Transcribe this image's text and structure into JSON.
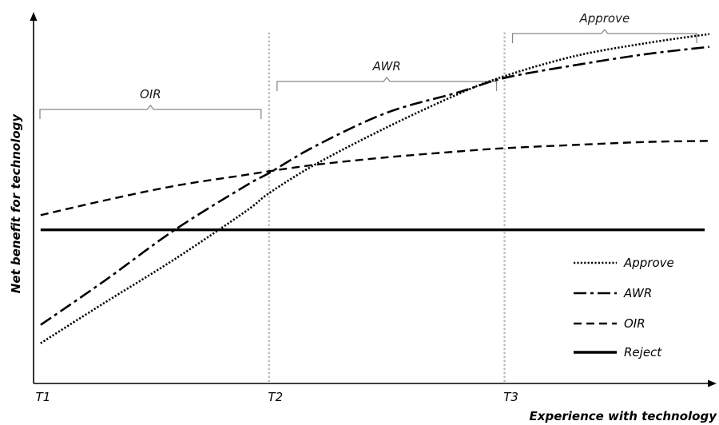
{
  "chart_data": {
    "type": "line",
    "xlabel": "Experience with technology",
    "ylabel": "Net benefit for technology",
    "x_ticks": [
      "T1",
      "T2",
      "T3"
    ],
    "regions": [
      {
        "label": "OIR",
        "from": "T1",
        "to": "T2"
      },
      {
        "label": "AWR",
        "from": "T2",
        "to": "T3"
      },
      {
        "label": "Approve",
        "from": "T3",
        "to": "end"
      }
    ],
    "xlim": [
      0,
      2.87
    ],
    "ylim": [
      0,
      10
    ],
    "series": [
      {
        "name": "Approve",
        "dash": "dotted",
        "x": [
          0.03,
          0.3,
          0.6,
          0.9,
          1.0,
          1.2,
          1.5,
          1.8,
          2.0,
          2.3,
          2.6,
          2.87
        ],
        "y": [
          1.1,
          2.2,
          3.4,
          4.7,
          5.2,
          6.0,
          7.0,
          7.9,
          8.4,
          8.95,
          9.3,
          9.55
        ]
      },
      {
        "name": "AWR",
        "dash": "dashdot",
        "x": [
          0.03,
          0.3,
          0.6,
          0.9,
          1.0,
          1.2,
          1.5,
          1.8,
          2.0,
          2.3,
          2.6,
          2.87
        ],
        "y": [
          1.6,
          2.8,
          4.2,
          5.4,
          5.75,
          6.5,
          7.4,
          7.95,
          8.35,
          8.7,
          9.0,
          9.2
        ]
      },
      {
        "name": "OIR",
        "dash": "dashed",
        "x": [
          0.03,
          0.3,
          0.6,
          0.9,
          1.0,
          1.2,
          1.5,
          1.8,
          2.0,
          2.3,
          2.6,
          2.87
        ],
        "y": [
          4.6,
          5.0,
          5.4,
          5.7,
          5.8,
          5.98,
          6.18,
          6.34,
          6.43,
          6.52,
          6.6,
          6.63
        ]
      },
      {
        "name": "Reject",
        "dash": "solid",
        "x": [
          0.03,
          2.85
        ],
        "y": [
          4.2,
          4.2
        ]
      }
    ],
    "legend": {
      "placement": "bottom-right"
    }
  },
  "legend_items": [
    {
      "name": "Approve",
      "text": "Approve"
    },
    {
      "name": "AWR",
      "text": "AWR"
    },
    {
      "name": "OIR",
      "text": "OIR"
    },
    {
      "name": "Reject",
      "text": "Reject"
    }
  ]
}
